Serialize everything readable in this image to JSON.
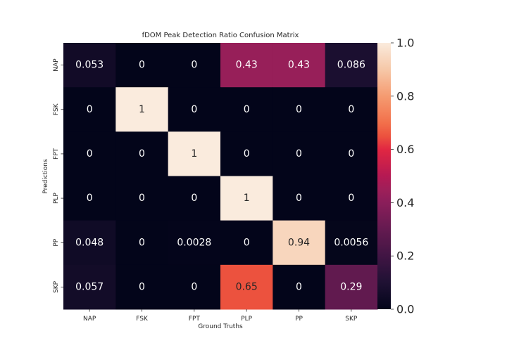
{
  "chart_data": {
    "type": "heatmap",
    "title": "fDOM Peak Detection Ratio Confusion Matrix",
    "xlabel": "Ground Truths",
    "ylabel": "Predictions",
    "x_categories": [
      "NAP",
      "FSK",
      "FPT",
      "PLP",
      "PP",
      "SKP"
    ],
    "y_categories": [
      "NAP",
      "FSK",
      "FPT",
      "PLP",
      "PP",
      "SKP"
    ],
    "values": [
      [
        0.053,
        0,
        0,
        0.43,
        0.43,
        0.086
      ],
      [
        0,
        1,
        0,
        0,
        0,
        0
      ],
      [
        0,
        0,
        1,
        0,
        0,
        0
      ],
      [
        0,
        0,
        0,
        1,
        0,
        0
      ],
      [
        0.048,
        0,
        0.0028,
        0,
        0.94,
        0.0056
      ],
      [
        0.057,
        0,
        0,
        0.65,
        0,
        0.29
      ]
    ],
    "labels": [
      [
        "0.053",
        "0",
        "0",
        "0.43",
        "0.43",
        "0.086"
      ],
      [
        "0",
        "1",
        "0",
        "0",
        "0",
        "0"
      ],
      [
        "0",
        "0",
        "1",
        "0",
        "0",
        "0"
      ],
      [
        "0",
        "0",
        "0",
        "1",
        "0",
        "0"
      ],
      [
        "0.048",
        "0",
        "0.0028",
        "0",
        "0.94",
        "0.0056"
      ],
      [
        "0.057",
        "0",
        "0",
        "0.65",
        "0",
        "0.29"
      ]
    ],
    "colorbar": {
      "range": [
        0,
        1
      ],
      "ticks": [
        "0.0",
        "0.2",
        "0.4",
        "0.6",
        "0.8",
        "1.0"
      ]
    },
    "colormap": "rocket",
    "colors": {
      "low_text": "#ffffff",
      "high_text": "#262626"
    },
    "grid": false
  }
}
